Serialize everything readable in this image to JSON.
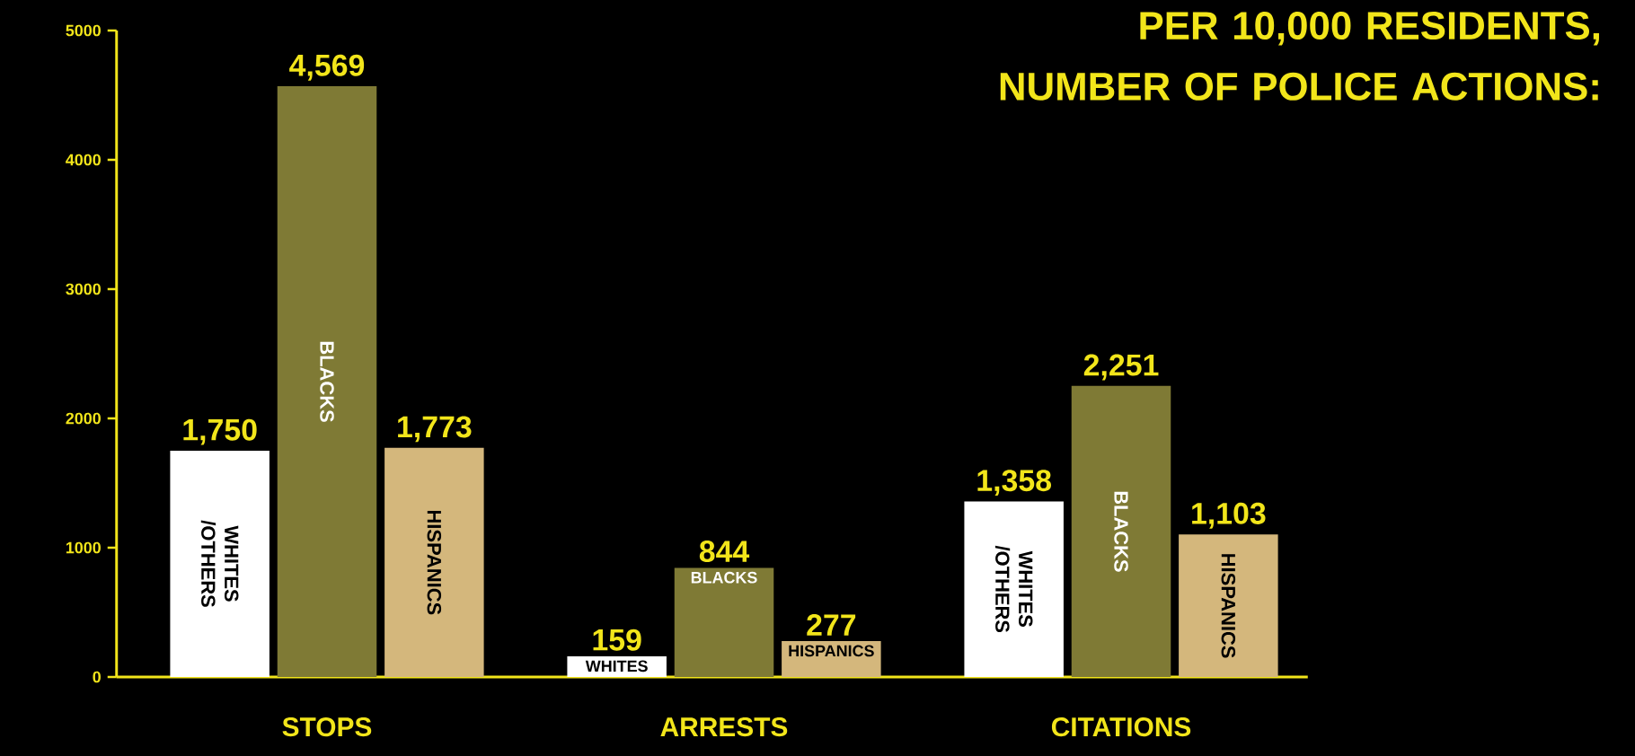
{
  "chart_data": {
    "type": "bar",
    "title": "PER 10,000 RESIDENTS, NUMBER OF POLICE ACTIONS:",
    "categories": [
      "STOPS",
      "ARRESTS",
      "CITATIONS"
    ],
    "series": [
      {
        "name": "WHITES /OTHERS",
        "color": "#ffffff",
        "values": [
          1750,
          159,
          1358
        ],
        "value_labels": [
          "1,750",
          "159",
          "1,358"
        ]
      },
      {
        "name": "BLACKS",
        "color": "#7f7a35",
        "values": [
          4569,
          844,
          2251
        ],
        "value_labels": [
          "4,569",
          "844",
          "2,251"
        ]
      },
      {
        "name": "HISPANICS",
        "color": "#d4b77c",
        "values": [
          1773,
          277,
          1103
        ],
        "value_labels": [
          "1,773",
          "277",
          "1,103"
        ]
      }
    ],
    "annotations": [
      "WHITES",
      "BLACKS",
      "HISPANICS"
    ],
    "ylim": [
      0,
      5000
    ],
    "yticks": [
      0,
      1000,
      2000,
      3000,
      4000,
      5000
    ],
    "grid": false,
    "legend": false
  }
}
